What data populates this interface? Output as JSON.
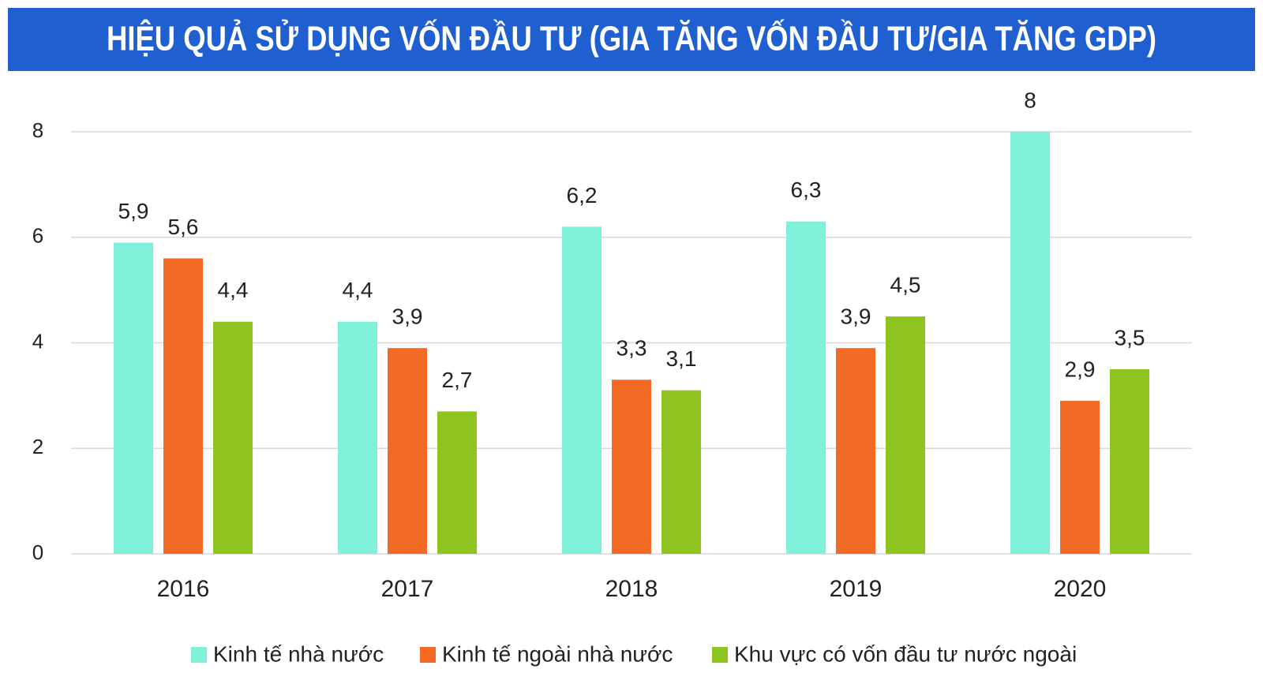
{
  "chart_data": {
    "type": "bar",
    "title": "HIỆU QUẢ SỬ DỤNG VỐN ĐẦU TƯ (GIA TĂNG VỐN ĐẦU TƯ/GIA TĂNG GDP)",
    "categories": [
      "2016",
      "2017",
      "2018",
      "2019",
      "2020"
    ],
    "series": [
      {
        "name": "Kinh tế nhà nước",
        "color": "#7ff0da",
        "values": [
          5.9,
          4.4,
          6.2,
          6.3,
          8
        ],
        "value_labels": [
          "5,9",
          "4,4",
          "6,2",
          "6,3",
          "8"
        ]
      },
      {
        "name": "Kinh tế ngoài nhà nước",
        "color": "#f26a24",
        "values": [
          5.6,
          3.9,
          3.3,
          3.9,
          2.9
        ],
        "value_labels": [
          "5,6",
          "3,9",
          "3,3",
          "3,9",
          "2,9"
        ]
      },
      {
        "name": "Khu vực có vốn đầu tư nước ngoài",
        "color": "#8fc31f",
        "values": [
          4.4,
          2.7,
          3.1,
          4.5,
          3.5
        ],
        "value_labels": [
          "4,4",
          "2,7",
          "3,1",
          "4,5",
          "3,5"
        ]
      }
    ],
    "ylim": [
      0,
      8
    ],
    "yticks": [
      0,
      2,
      4,
      6,
      8
    ],
    "grid": true,
    "legend": "bottom"
  }
}
